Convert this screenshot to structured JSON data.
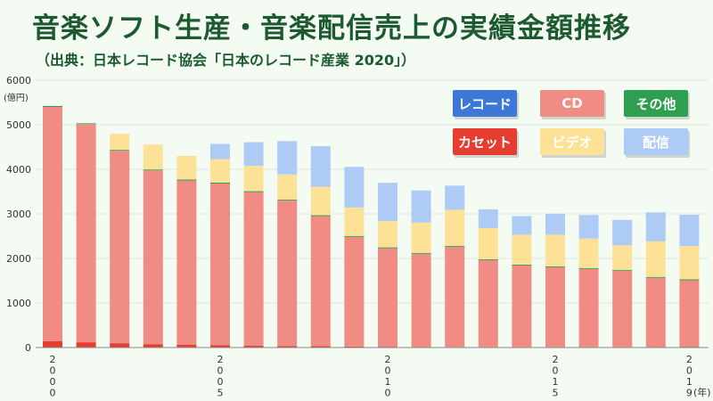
{
  "title": "音楽ソフト生産・音楽配信売上の実績金額推移",
  "subtitle": "（出典：日本レコード協会「日本のレコード産業 2020」）",
  "colors": {
    "record": "#3c78d8",
    "cd": "#f08c84",
    "other": "#2e9e4f",
    "cassette": "#e53d2f",
    "video": "#fde196",
    "digital": "#aecbf5"
  },
  "legend": [
    {
      "key": "record",
      "label": "レコード",
      "text_color": "#ffffff"
    },
    {
      "key": "cd",
      "label": "CD",
      "text_color": "#ffffff"
    },
    {
      "key": "other",
      "label": "その他",
      "text_color": "#ffffff"
    },
    {
      "key": "cassette",
      "label": "カセット",
      "text_color": "#ffffff"
    },
    {
      "key": "video",
      "label": "ビデオ",
      "text_color": "#ffffff"
    },
    {
      "key": "digital",
      "label": "配信",
      "text_color": "#ffffff"
    }
  ],
  "chart_data": {
    "type": "bar",
    "stacked": true,
    "title": "音楽ソフト生産・音楽配信売上の実績金額推移",
    "subtitle": "（出典：日本レコード協会「日本のレコード産業 2020」）",
    "ylabel": "(億円)",
    "xlabel": "(年)",
    "ylim": [
      0,
      6000
    ],
    "yticks": [
      0,
      1000,
      2000,
      3000,
      4000,
      5000,
      6000
    ],
    "grid": true,
    "legend_position": "top-right",
    "categories": [
      "2000",
      "2001",
      "2002",
      "2003",
      "2004",
      "2005",
      "2006",
      "2007",
      "2008",
      "2009",
      "2010",
      "2011",
      "2012",
      "2013",
      "2014",
      "2015",
      "2016",
      "2017",
      "2018",
      "2019"
    ],
    "x_tick_labels": [
      "2000",
      "",
      "",
      "",
      "",
      "2005",
      "",
      "",
      "",
      "",
      "2010",
      "",
      "",
      "",
      "",
      "2015",
      "",
      "",
      "",
      "2019"
    ],
    "series": [
      {
        "key": "record",
        "name": "レコード",
        "values": [
          10,
          8,
          7,
          6,
          5,
          5,
          4,
          4,
          4,
          3,
          3,
          3,
          3,
          4,
          5,
          6,
          8,
          9,
          10,
          15
        ]
      },
      {
        "key": "cassette",
        "name": "カセット",
        "values": [
          130,
          110,
          90,
          70,
          55,
          45,
          35,
          30,
          25,
          20,
          15,
          12,
          10,
          8,
          7,
          6,
          6,
          5,
          5,
          5
        ]
      },
      {
        "key": "cd",
        "name": "CD",
        "values": [
          5260,
          4900,
          4320,
          3900,
          3690,
          3630,
          3450,
          3270,
          2920,
          2460,
          2210,
          2090,
          2250,
          1950,
          1830,
          1790,
          1750,
          1710,
          1550,
          1490
        ]
      },
      {
        "key": "other",
        "name": "その他",
        "values": [
          20,
          15,
          20,
          20,
          20,
          20,
          20,
          20,
          20,
          20,
          20,
          20,
          20,
          20,
          20,
          20,
          20,
          20,
          20,
          20
        ]
      },
      {
        "key": "video",
        "name": "ビデオ",
        "values": [
          0,
          0,
          360,
          560,
          530,
          530,
          570,
          560,
          640,
          640,
          590,
          680,
          810,
          700,
          670,
          710,
          660,
          550,
          800,
          750
        ]
      },
      {
        "key": "digital",
        "name": "配信",
        "values": [
          0,
          0,
          0,
          0,
          0,
          340,
          530,
          750,
          910,
          910,
          860,
          720,
          540,
          420,
          420,
          470,
          530,
          570,
          650,
          700
        ]
      }
    ]
  }
}
